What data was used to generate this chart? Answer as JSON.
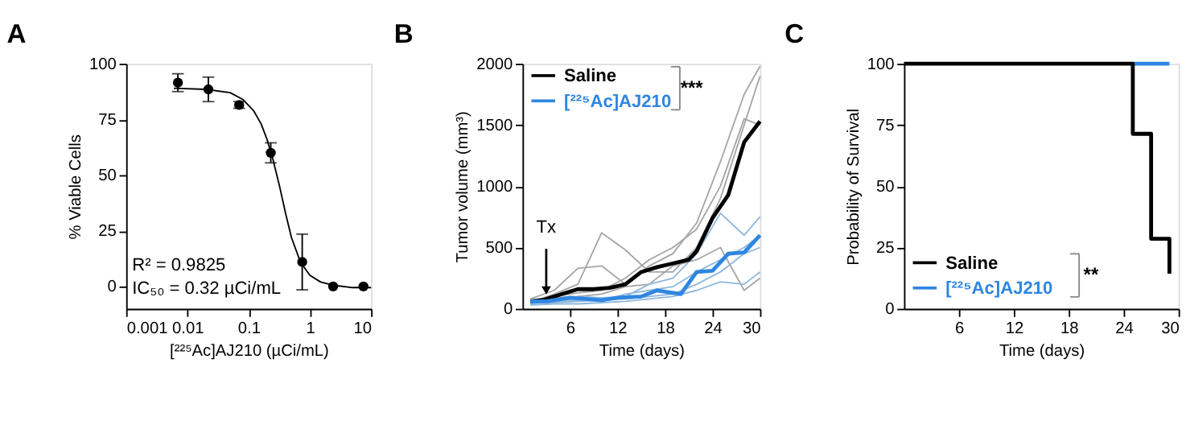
{
  "chart_data": [
    {
      "type": "scatter",
      "title": "A",
      "xlabel": "[²²⁵Ac]AJ210 (µCi/mL)",
      "ylabel": "% Viable Cells",
      "log": "x",
      "xlim": [
        0.001,
        10
      ],
      "xticks": [
        0.001,
        0.01,
        0.1,
        1,
        10
      ],
      "ylim": [
        -10,
        100
      ],
      "yticks": [
        0,
        25,
        50,
        75,
        100
      ],
      "series": [
        {
          "type": "line",
          "color": "#000000",
          "x": [
            0.006,
            0.02,
            0.05,
            0.08,
            0.12,
            0.16,
            0.2,
            0.25,
            0.32,
            0.4,
            0.5,
            0.7,
            1,
            1.5,
            2.5,
            5,
            10
          ],
          "values": [
            89,
            88.5,
            87,
            84,
            79,
            73,
            66,
            57,
            45,
            33,
            22,
            11,
            5,
            2,
            0.5,
            -0.5,
            -0.5
          ]
        },
        {
          "type": "scatter",
          "color": "#000000",
          "marker": "circle",
          "x": [
            0.007,
            0.022,
            0.07,
            0.23,
            0.75,
            2.4,
            7.5
          ],
          "values": [
            91.5,
            88.5,
            81.5,
            60,
            11,
            0,
            0
          ],
          "errors": [
            4,
            5.5,
            1.5,
            4.5,
            12.5,
            null,
            null
          ]
        }
      ],
      "annotations": [
        "R² = 0.9825",
        "IC₅₀ = 0.32 µCi/mL"
      ]
    },
    {
      "type": "line",
      "title": "B",
      "xlabel": "Time (days)",
      "ylabel": "Tumor volume (mm³)",
      "xlim": [
        0,
        30
      ],
      "xticks": [
        6,
        12,
        18,
        24,
        30
      ],
      "ylim": [
        0,
        2000
      ],
      "yticks": [
        0,
        500,
        1000,
        1500,
        2000
      ],
      "legend": "top left",
      "series": [
        {
          "color": "#a6a6a6",
          "x": [
            1,
            4,
            7,
            10,
            13,
            16,
            19,
            22,
            25,
            28,
            30
          ],
          "values": [
            80,
            150,
            330,
            350,
            200,
            350,
            450,
            700,
            1200,
            1750,
            1980
          ]
        },
        {
          "color": "#a6a6a6",
          "x": [
            1,
            4,
            7,
            10,
            13,
            16,
            19,
            22,
            25,
            28,
            30
          ],
          "values": [
            50,
            120,
            200,
            620,
            480,
            300,
            300,
            500,
            900,
            1500,
            1900
          ]
        },
        {
          "color": "#a6a6a6",
          "x": [
            1,
            4,
            7,
            10,
            13,
            16,
            19,
            22,
            25,
            28,
            30
          ],
          "values": [
            70,
            100,
            130,
            150,
            250,
            400,
            500,
            650,
            1000,
            1550,
            1500
          ]
        },
        {
          "color": "#a6a6a6",
          "x": [
            1,
            4,
            7,
            10,
            13,
            16,
            19,
            22,
            25,
            28,
            30
          ],
          "values": [
            40,
            90,
            100,
            120,
            180,
            200,
            350,
            400,
            500,
            150,
            250
          ]
        },
        {
          "color": "#8fb8dc",
          "x": [
            1,
            4,
            7,
            10,
            13,
            16,
            19,
            22,
            25,
            28,
            30
          ],
          "values": [
            60,
            70,
            100,
            90,
            100,
            200,
            250,
            450,
            780,
            600,
            750
          ]
        },
        {
          "color": "#8fb8dc",
          "x": [
            1,
            4,
            7,
            10,
            13,
            16,
            19,
            22,
            25,
            28,
            30
          ],
          "values": [
            40,
            60,
            70,
            60,
            120,
            150,
            180,
            300,
            400,
            500,
            600
          ]
        },
        {
          "color": "#8fb8dc",
          "x": [
            1,
            4,
            7,
            10,
            13,
            16,
            19,
            22,
            25,
            28,
            30
          ],
          "values": [
            50,
            50,
            60,
            70,
            80,
            100,
            120,
            200,
            300,
            450,
            500
          ]
        },
        {
          "color": "#8fb8dc",
          "x": [
            1,
            4,
            7,
            10,
            13,
            16,
            19,
            22,
            25,
            28,
            30
          ],
          "values": [
            30,
            40,
            40,
            50,
            60,
            80,
            100,
            150,
            220,
            200,
            300
          ]
        },
        {
          "name": "Saline",
          "color": "#000000",
          "x": [
            1,
            2.5,
            5,
            7,
            9,
            11,
            13,
            15,
            17,
            19,
            21,
            22,
            24,
            26,
            28,
            30
          ],
          "values": [
            60,
            70,
            120,
            160,
            160,
            170,
            200,
            300,
            340,
            370,
            400,
            470,
            740,
            930,
            1360,
            1530
          ]
        },
        {
          "name": "[²²⁵Ac]AJ210",
          "color": "#2f86e0",
          "x": [
            1,
            3,
            6,
            8,
            10,
            12,
            15,
            17,
            20,
            22,
            24,
            26,
            28,
            30
          ],
          "values": [
            60,
            60,
            90,
            80,
            70,
            90,
            100,
            150,
            120,
            300,
            310,
            450,
            460,
            600
          ]
        }
      ],
      "annotations": [
        {
          "text": "Tx",
          "x": 3,
          "y": 150
        },
        "***"
      ]
    },
    {
      "type": "step",
      "title": "C",
      "xlabel": "Time (days)",
      "ylabel": "Probability of Survival",
      "xlim": [
        0,
        30
      ],
      "xticks": [
        6,
        12,
        18,
        24,
        30
      ],
      "ylim": [
        0,
        100
      ],
      "yticks": [
        0,
        25,
        50,
        75,
        100
      ],
      "legend": "bottom left",
      "series": [
        {
          "name": "[²²⁵Ac]AJ210",
          "color": "#2f86e0",
          "x": [
            25,
            29
          ],
          "values": [
            100,
            100
          ]
        },
        {
          "name": "Saline",
          "color": "#000000",
          "x": [
            0,
            25,
            27,
            29
          ],
          "values": [
            100,
            71.4,
            28.6,
            14.3
          ]
        }
      ],
      "annotations": [
        "**"
      ]
    }
  ]
}
